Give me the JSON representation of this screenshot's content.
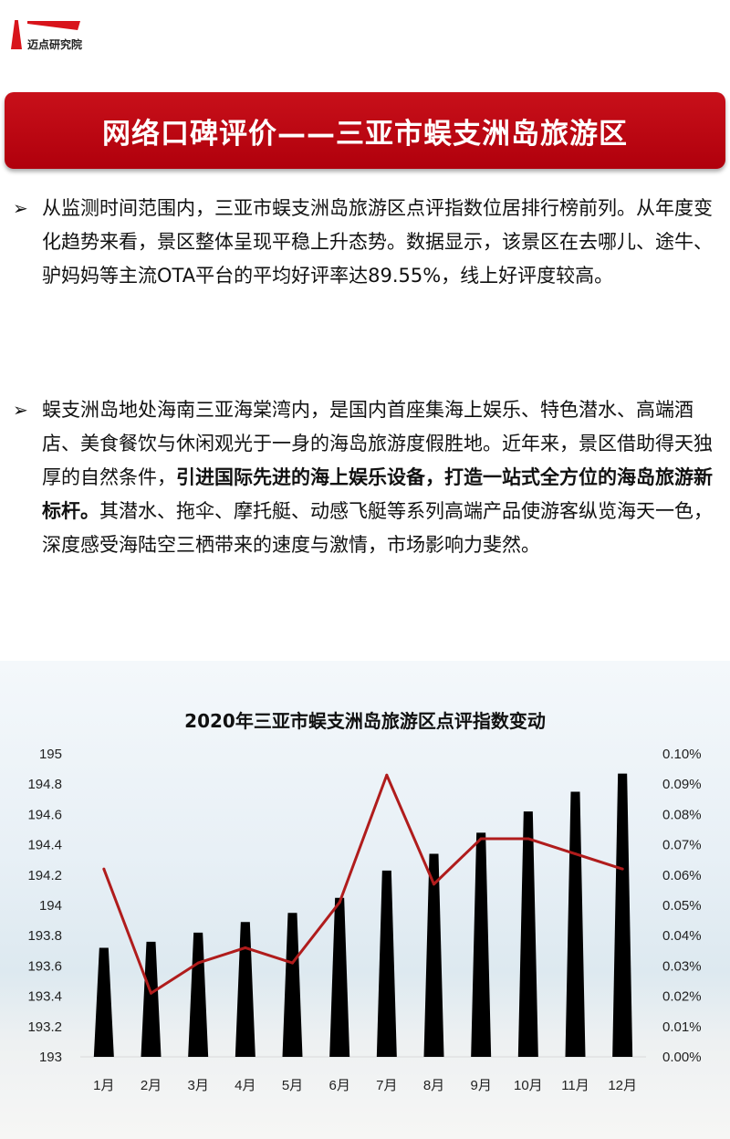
{
  "logo": {
    "name": "迈点研究院"
  },
  "banner": {
    "title": "网络口碑评价——三亚市蜈支洲岛旅游区"
  },
  "paragraphs": [
    {
      "bullet": "➢",
      "parts": [
        {
          "text": "从监测时间范围内，三亚市蜈支洲岛旅游区点评指数位居排行榜前列。从年度变化趋势来看，景区整体呈现平稳上升态势。数据显示，该景区在去哪儿、途牛、驴妈妈等主流OTA平台的平均好评率达89.55%，线上好评度较高。",
          "bold": false
        }
      ]
    },
    {
      "bullet": "➢",
      "parts": [
        {
          "text": "蜈支洲岛地处海南三亚海棠湾内，是国内首座集海上娱乐、特色潜水、高端酒店、美食餐饮与休闲观光于一身的海岛旅游度假胜地。近年来，景区借助得天独厚的自然条件，",
          "bold": false
        },
        {
          "text": "引进国际先进的海上娱乐设备，打造一站式全方位的海岛旅游新标杆。",
          "bold": true
        },
        {
          "text": "其潜水、拖伞、摩托艇、动感飞艇等系列高端产品使游客纵览海天一色，深度感受海陆空三栖带来的速度与激情，市场影响力斐然。",
          "bold": false
        }
      ]
    }
  ],
  "chart_data": {
    "type": "bar+line",
    "title": "2020年三亚市蜈支洲岛旅游区点评指数变动",
    "categories": [
      "1月",
      "2月",
      "3月",
      "4月",
      "5月",
      "6月",
      "7月",
      "8月",
      "9月",
      "10月",
      "11月",
      "12月"
    ],
    "series": [
      {
        "type": "bar",
        "axis": "left",
        "color": "#000000",
        "values": [
          193.72,
          193.76,
          193.82,
          193.89,
          193.95,
          194.05,
          194.23,
          194.34,
          194.48,
          194.62,
          194.75,
          194.87
        ]
      },
      {
        "type": "line",
        "axis": "right",
        "color": "#b01c1c",
        "values": [
          0.062,
          0.021,
          0.031,
          0.036,
          0.031,
          0.051,
          0.093,
          0.057,
          0.072,
          0.072,
          0.067,
          0.062
        ]
      }
    ],
    "left_axis": {
      "range": [
        193,
        195
      ],
      "ticks": [
        "193",
        "193.2",
        "193.4",
        "193.6",
        "193.8",
        "194",
        "194.2",
        "194.4",
        "194.6",
        "194.8",
        "195"
      ]
    },
    "right_axis": {
      "range": [
        0,
        0.1
      ],
      "unit": "%",
      "ticks": [
        "0.00%",
        "0.01%",
        "0.02%",
        "0.03%",
        "0.04%",
        "0.05%",
        "0.06%",
        "0.07%",
        "0.08%",
        "0.09%",
        "0.10%"
      ]
    },
    "grid": false,
    "legend": "none"
  }
}
